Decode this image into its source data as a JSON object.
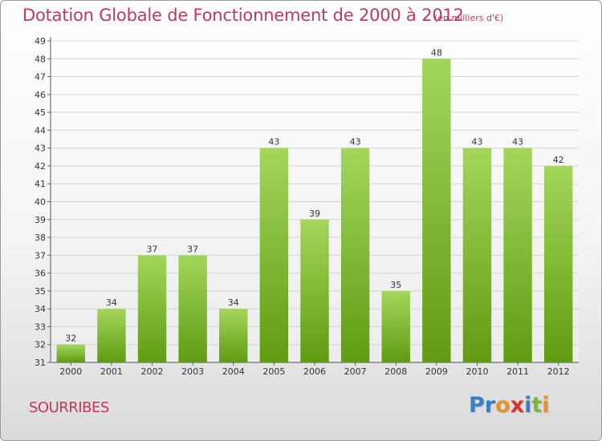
{
  "header": {
    "title": "Dotation Globale de Fonctionnement de 2000 à 2012",
    "unit": "(en milliers d'€)"
  },
  "footer": {
    "commune": "SOURRIBES",
    "logo": [
      "P",
      "r",
      "o",
      "x",
      "i",
      "t",
      "i"
    ]
  },
  "colors": {
    "title": "#c0395a",
    "bar_top": "#a4d65a",
    "bar_bottom": "#5f9c12",
    "logo": [
      "#3a7fc4",
      "#3a7fc4",
      "#e8912a",
      "#d8342a",
      "#3a7fc4",
      "#7ab83a",
      "#e8912a"
    ]
  },
  "chart_data": {
    "type": "bar",
    "title": "Dotation Globale de Fonctionnement de 2000 à 2012",
    "subtitle": "(en milliers d'€)",
    "categories": [
      "2000",
      "2001",
      "2002",
      "2003",
      "2004",
      "2005",
      "2006",
      "2007",
      "2008",
      "2009",
      "2010",
      "2011",
      "2012"
    ],
    "values": [
      32,
      34,
      37,
      37,
      34,
      43,
      39,
      43,
      35,
      48,
      43,
      43,
      42
    ],
    "ylim": [
      31,
      49
    ],
    "yticks": [
      31,
      32,
      33,
      34,
      35,
      36,
      37,
      38,
      39,
      40,
      41,
      42,
      43,
      44,
      45,
      46,
      47,
      48,
      49
    ],
    "xlabel": "",
    "ylabel": "",
    "grid": true,
    "data_labels": true
  }
}
